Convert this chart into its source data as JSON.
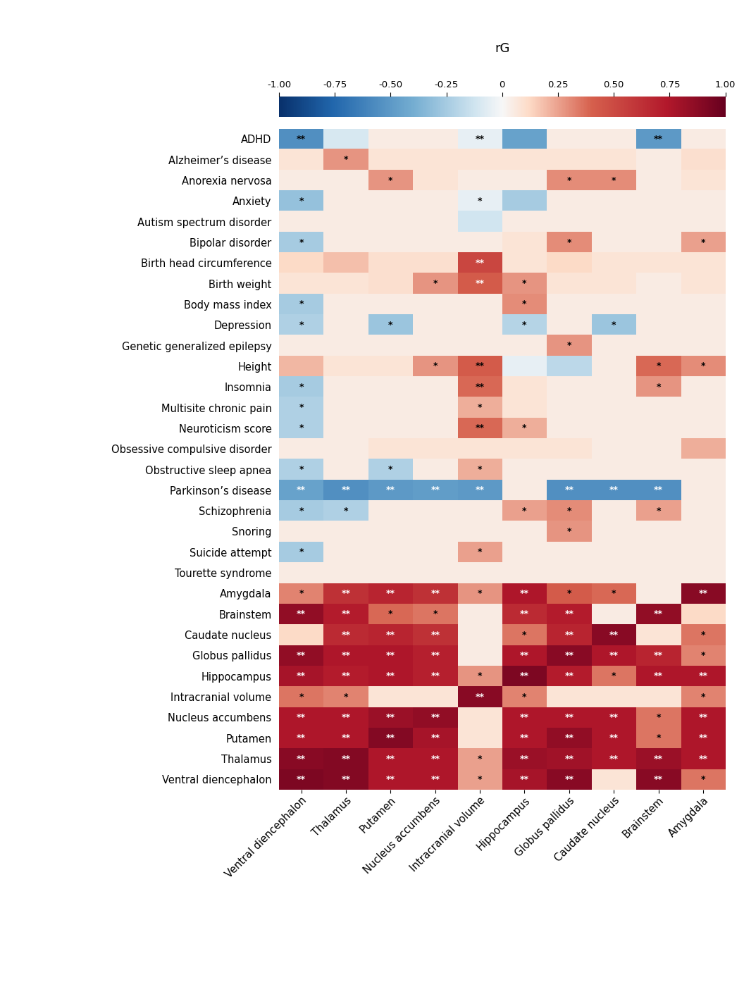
{
  "title": "rG",
  "rows": [
    "ADHD",
    "Alzheimer’s disease",
    "Anorexia nervosa",
    "Anxiety",
    "Autism spectrum disorder",
    "Bipolar disorder",
    "Birth head circumference",
    "Birth weight",
    "Body mass index",
    "Depression",
    "Genetic generalized epilepsy",
    "Height",
    "Insomnia",
    "Multisite chronic pain",
    "Neuroticism score",
    "Obsessive compulsive disorder",
    "Obstructive sleep apnea",
    "Parkinson’s disease",
    "Schizophrenia",
    "Snoring",
    "Suicide attempt",
    "Tourette syndrome",
    "Amygdala",
    "Brainstem",
    "Caudate nucleus",
    "Globus pallidus",
    "Hippocampus",
    "Intracranial volume",
    "Nucleus accumbens",
    "Putamen",
    "Thalamus",
    "Ventral diencephalon"
  ],
  "cols": [
    "Ventral diencephalon",
    "Thalamus",
    "Putamen",
    "Nucleus accumbens",
    "Intracranial volume",
    "Hippocampus",
    "Globus pallidus",
    "Caudate nucleus",
    "Brainstem",
    "Amygdala"
  ],
  "values": [
    [
      -0.55,
      -0.1,
      0.05,
      0.05,
      -0.05,
      -0.45,
      0.05,
      0.05,
      -0.5,
      0.05
    ],
    [
      0.08,
      0.28,
      0.08,
      0.08,
      0.08,
      0.08,
      0.08,
      0.08,
      0.05,
      0.1
    ],
    [
      0.05,
      0.05,
      0.28,
      0.08,
      0.05,
      0.05,
      0.3,
      0.3,
      0.05,
      0.08
    ],
    [
      -0.3,
      0.05,
      0.05,
      0.05,
      -0.05,
      -0.25,
      0.05,
      0.05,
      0.05,
      0.05
    ],
    [
      0.05,
      0.05,
      0.05,
      0.05,
      -0.12,
      0.05,
      0.05,
      0.05,
      0.05,
      0.05
    ],
    [
      -0.25,
      0.05,
      0.05,
      0.05,
      0.05,
      0.08,
      0.3,
      0.05,
      0.05,
      0.25
    ],
    [
      0.12,
      0.18,
      0.1,
      0.1,
      0.52,
      0.08,
      0.12,
      0.08,
      0.08,
      0.08
    ],
    [
      0.08,
      0.08,
      0.1,
      0.28,
      0.42,
      0.28,
      0.08,
      0.08,
      0.05,
      0.08
    ],
    [
      -0.25,
      0.05,
      0.05,
      0.05,
      0.05,
      0.3,
      0.05,
      0.05,
      0.05,
      0.05
    ],
    [
      -0.22,
      0.05,
      -0.28,
      0.05,
      0.05,
      -0.2,
      0.05,
      -0.28,
      0.05,
      0.05
    ],
    [
      0.05,
      0.05,
      0.05,
      0.05,
      0.05,
      0.05,
      0.28,
      0.05,
      0.05,
      0.05
    ],
    [
      0.2,
      0.08,
      0.08,
      0.28,
      0.42,
      -0.05,
      -0.18,
      0.05,
      0.38,
      0.3
    ],
    [
      -0.25,
      0.05,
      0.05,
      0.05,
      0.38,
      0.08,
      0.05,
      0.05,
      0.28,
      0.05
    ],
    [
      -0.22,
      0.05,
      0.05,
      0.05,
      0.22,
      0.08,
      0.05,
      0.05,
      0.05,
      0.05
    ],
    [
      -0.22,
      0.05,
      0.05,
      0.05,
      0.38,
      0.22,
      0.05,
      0.05,
      0.05,
      0.05
    ],
    [
      0.05,
      0.05,
      0.08,
      0.08,
      0.08,
      0.08,
      0.08,
      0.05,
      0.05,
      0.22
    ],
    [
      -0.22,
      0.05,
      -0.22,
      0.05,
      0.22,
      0.05,
      0.05,
      0.05,
      0.05,
      0.05
    ],
    [
      -0.45,
      -0.55,
      -0.5,
      -0.48,
      -0.5,
      0.05,
      -0.55,
      -0.55,
      -0.55,
      0.05
    ],
    [
      -0.25,
      -0.22,
      0.05,
      0.05,
      0.05,
      0.25,
      0.3,
      0.05,
      0.25,
      0.05
    ],
    [
      0.05,
      0.05,
      0.05,
      0.05,
      0.05,
      0.05,
      0.28,
      0.05,
      0.05,
      0.05
    ],
    [
      -0.25,
      0.05,
      0.05,
      0.05,
      0.25,
      0.05,
      0.05,
      0.05,
      0.05,
      0.05
    ],
    [
      0.05,
      0.05,
      0.05,
      0.05,
      0.05,
      0.05,
      0.05,
      0.05,
      0.05,
      0.05
    ],
    [
      0.32,
      0.62,
      0.68,
      0.62,
      0.28,
      0.75,
      0.42,
      0.38,
      0.05,
      0.88
    ],
    [
      0.85,
      0.72,
      0.38,
      0.35,
      0.05,
      0.65,
      0.72,
      0.05,
      0.85,
      0.12
    ],
    [
      0.12,
      0.65,
      0.68,
      0.62,
      0.05,
      0.35,
      0.68,
      0.88,
      0.08,
      0.35
    ],
    [
      0.85,
      0.75,
      0.75,
      0.7,
      0.05,
      0.75,
      0.88,
      0.75,
      0.68,
      0.32
    ],
    [
      0.78,
      0.72,
      0.75,
      0.7,
      0.28,
      0.92,
      0.72,
      0.35,
      0.75,
      0.75
    ],
    [
      0.35,
      0.32,
      0.08,
      0.08,
      0.88,
      0.32,
      0.08,
      0.08,
      0.08,
      0.32
    ],
    [
      0.75,
      0.75,
      0.82,
      0.85,
      0.08,
      0.75,
      0.75,
      0.75,
      0.35,
      0.75
    ],
    [
      0.75,
      0.75,
      0.9,
      0.78,
      0.08,
      0.75,
      0.85,
      0.75,
      0.35,
      0.75
    ],
    [
      0.88,
      0.9,
      0.75,
      0.75,
      0.25,
      0.82,
      0.8,
      0.75,
      0.82,
      0.75
    ],
    [
      0.92,
      0.9,
      0.75,
      0.75,
      0.25,
      0.78,
      0.88,
      0.08,
      0.88,
      0.35
    ]
  ],
  "stars": [
    [
      "**",
      "",
      "",
      "",
      "**",
      "",
      "",
      "",
      "**",
      ""
    ],
    [
      "",
      "*",
      "",
      "",
      "",
      "",
      "",
      "",
      "",
      ""
    ],
    [
      "",
      "",
      "*",
      "",
      "",
      "",
      "*",
      "*",
      "",
      ""
    ],
    [
      "*",
      "",
      "",
      "",
      "*",
      "",
      "",
      "",
      "",
      ""
    ],
    [
      "",
      "",
      "",
      "",
      "",
      "",
      "",
      "",
      "",
      ""
    ],
    [
      "*",
      "",
      "",
      "",
      "",
      "",
      "*",
      "",
      "",
      "*"
    ],
    [
      "",
      "",
      "",
      "",
      "**",
      "",
      "",
      "",
      "",
      ""
    ],
    [
      "",
      "",
      "",
      "*",
      "**",
      "*",
      "",
      "",
      "",
      ""
    ],
    [
      "*",
      "",
      "",
      "",
      "",
      "*",
      "",
      "",
      "",
      ""
    ],
    [
      "*",
      "",
      "*",
      "",
      "",
      "*",
      "",
      "*",
      "",
      ""
    ],
    [
      "",
      "",
      "",
      "",
      "",
      "",
      "*",
      "",
      "",
      ""
    ],
    [
      "",
      "",
      "",
      "*",
      "**",
      "",
      "",
      "",
      "*",
      "*"
    ],
    [
      "*",
      "",
      "",
      "",
      "**",
      "",
      "",
      "",
      "*",
      ""
    ],
    [
      "*",
      "",
      "",
      "",
      "*",
      "",
      "",
      "",
      "",
      ""
    ],
    [
      "*",
      "",
      "",
      "",
      "**",
      "*",
      "",
      "",
      "",
      ""
    ],
    [
      "",
      "",
      "",
      "",
      "",
      "",
      "",
      "",
      "",
      ""
    ],
    [
      "*",
      "",
      "*",
      "",
      "*",
      "",
      "",
      "",
      "",
      ""
    ],
    [
      "**",
      "**",
      "**",
      "**",
      "**",
      "",
      "**",
      "**",
      "**",
      ""
    ],
    [
      "*",
      "*",
      "",
      "",
      "",
      "*",
      "*",
      "",
      "*",
      ""
    ],
    [
      "",
      "",
      "",
      "",
      "",
      "",
      "*",
      "",
      "",
      ""
    ],
    [
      "*",
      "",
      "",
      "",
      "*",
      "",
      "",
      "",
      "",
      ""
    ],
    [
      "",
      "",
      "",
      "",
      "",
      "",
      "",
      "",
      "",
      ""
    ],
    [
      "*",
      "**",
      "**",
      "**",
      "*",
      "**",
      "*",
      "*",
      "",
      "**"
    ],
    [
      "**",
      "**",
      "*",
      "*",
      "",
      "**",
      "**",
      "",
      "**",
      ""
    ],
    [
      "",
      "**",
      "**",
      "**",
      "",
      "*",
      "**",
      "**",
      "",
      "*"
    ],
    [
      "**",
      "**",
      "**",
      "**",
      "",
      "**",
      "**",
      "**",
      "**",
      "*"
    ],
    [
      "**",
      "**",
      "**",
      "**",
      "*",
      "**",
      "**",
      "*",
      "**",
      "**"
    ],
    [
      "*",
      "*",
      "",
      "",
      "**",
      "*",
      "",
      "",
      "",
      "*"
    ],
    [
      "**",
      "**",
      "**",
      "**",
      "",
      "**",
      "**",
      "**",
      "*",
      "**"
    ],
    [
      "**",
      "**",
      "**",
      "**",
      "",
      "**",
      "**",
      "**",
      "*",
      "**"
    ],
    [
      "**",
      "**",
      "**",
      "**",
      "*",
      "**",
      "**",
      "**",
      "**",
      "**"
    ],
    [
      "**",
      "**",
      "**",
      "**",
      "*",
      "**",
      "**",
      "",
      "**",
      "*"
    ]
  ],
  "star_colors": [
    [
      "k",
      "k",
      "k",
      "k",
      "k",
      "k",
      "k",
      "k",
      "k",
      "k"
    ],
    [
      "k",
      "k",
      "k",
      "k",
      "k",
      "k",
      "k",
      "k",
      "k",
      "k"
    ],
    [
      "k",
      "k",
      "k",
      "k",
      "k",
      "k",
      "k",
      "k",
      "k",
      "k"
    ],
    [
      "k",
      "k",
      "k",
      "k",
      "k",
      "k",
      "k",
      "k",
      "k",
      "k"
    ],
    [
      "k",
      "k",
      "k",
      "k",
      "k",
      "k",
      "k",
      "k",
      "k",
      "k"
    ],
    [
      "k",
      "k",
      "k",
      "k",
      "k",
      "k",
      "k",
      "k",
      "k",
      "k"
    ],
    [
      "k",
      "k",
      "k",
      "k",
      "w",
      "k",
      "k",
      "k",
      "k",
      "k"
    ],
    [
      "k",
      "k",
      "k",
      "k",
      "w",
      "k",
      "k",
      "k",
      "k",
      "k"
    ],
    [
      "k",
      "k",
      "k",
      "k",
      "k",
      "k",
      "k",
      "k",
      "k",
      "k"
    ],
    [
      "k",
      "k",
      "k",
      "k",
      "k",
      "k",
      "k",
      "k",
      "k",
      "k"
    ],
    [
      "k",
      "k",
      "k",
      "k",
      "k",
      "k",
      "k",
      "k",
      "k",
      "k"
    ],
    [
      "k",
      "k",
      "k",
      "k",
      "k",
      "k",
      "k",
      "k",
      "k",
      "k"
    ],
    [
      "k",
      "k",
      "k",
      "k",
      "k",
      "k",
      "k",
      "k",
      "k",
      "k"
    ],
    [
      "k",
      "k",
      "k",
      "k",
      "k",
      "k",
      "k",
      "k",
      "k",
      "k"
    ],
    [
      "k",
      "k",
      "k",
      "k",
      "k",
      "k",
      "k",
      "k",
      "k",
      "k"
    ],
    [
      "k",
      "k",
      "k",
      "k",
      "k",
      "k",
      "k",
      "k",
      "k",
      "k"
    ],
    [
      "k",
      "k",
      "k",
      "k",
      "k",
      "k",
      "k",
      "k",
      "k",
      "k"
    ],
    [
      "w",
      "w",
      "w",
      "w",
      "w",
      "k",
      "w",
      "w",
      "w",
      "k"
    ],
    [
      "k",
      "k",
      "k",
      "k",
      "k",
      "k",
      "k",
      "k",
      "k",
      "k"
    ],
    [
      "k",
      "k",
      "k",
      "k",
      "k",
      "k",
      "k",
      "k",
      "k",
      "k"
    ],
    [
      "k",
      "k",
      "k",
      "k",
      "k",
      "k",
      "k",
      "k",
      "k",
      "k"
    ],
    [
      "k",
      "k",
      "k",
      "k",
      "k",
      "k",
      "k",
      "k",
      "k",
      "k"
    ],
    [
      "k",
      "w",
      "w",
      "w",
      "k",
      "w",
      "k",
      "k",
      "k",
      "w"
    ],
    [
      "w",
      "w",
      "k",
      "k",
      "k",
      "w",
      "w",
      "k",
      "w",
      "k"
    ],
    [
      "k",
      "w",
      "w",
      "w",
      "k",
      "k",
      "w",
      "w",
      "k",
      "k"
    ],
    [
      "w",
      "w",
      "w",
      "w",
      "k",
      "w",
      "w",
      "w",
      "w",
      "k"
    ],
    [
      "w",
      "w",
      "w",
      "w",
      "k",
      "w",
      "w",
      "k",
      "w",
      "w"
    ],
    [
      "k",
      "k",
      "k",
      "k",
      "w",
      "k",
      "k",
      "k",
      "k",
      "k"
    ],
    [
      "w",
      "w",
      "w",
      "w",
      "k",
      "w",
      "w",
      "w",
      "k",
      "w"
    ],
    [
      "w",
      "w",
      "w",
      "w",
      "k",
      "w",
      "w",
      "w",
      "k",
      "w"
    ],
    [
      "w",
      "w",
      "w",
      "w",
      "k",
      "w",
      "w",
      "w",
      "w",
      "w"
    ],
    [
      "w",
      "w",
      "w",
      "w",
      "k",
      "w",
      "w",
      "k",
      "w",
      "k"
    ]
  ],
  "vmin": -1.0,
  "vmax": 1.0,
  "cbar_ticks": [
    -1.0,
    -0.75,
    -0.5,
    -0.25,
    0.0,
    0.25,
    0.5,
    0.75,
    1.0
  ],
  "cbar_ticklabels": [
    "-1.00",
    "-0.75",
    "-0.50",
    "-0.25",
    "0",
    "0.25",
    "0.50",
    "0.75",
    "1.00"
  ],
  "background_color": "#ffffff",
  "fontsize_row": 10.5,
  "fontsize_col": 10.5,
  "fontsize_title": 13,
  "fontsize_star": 9,
  "fontsize_cbar_tick": 9.5
}
